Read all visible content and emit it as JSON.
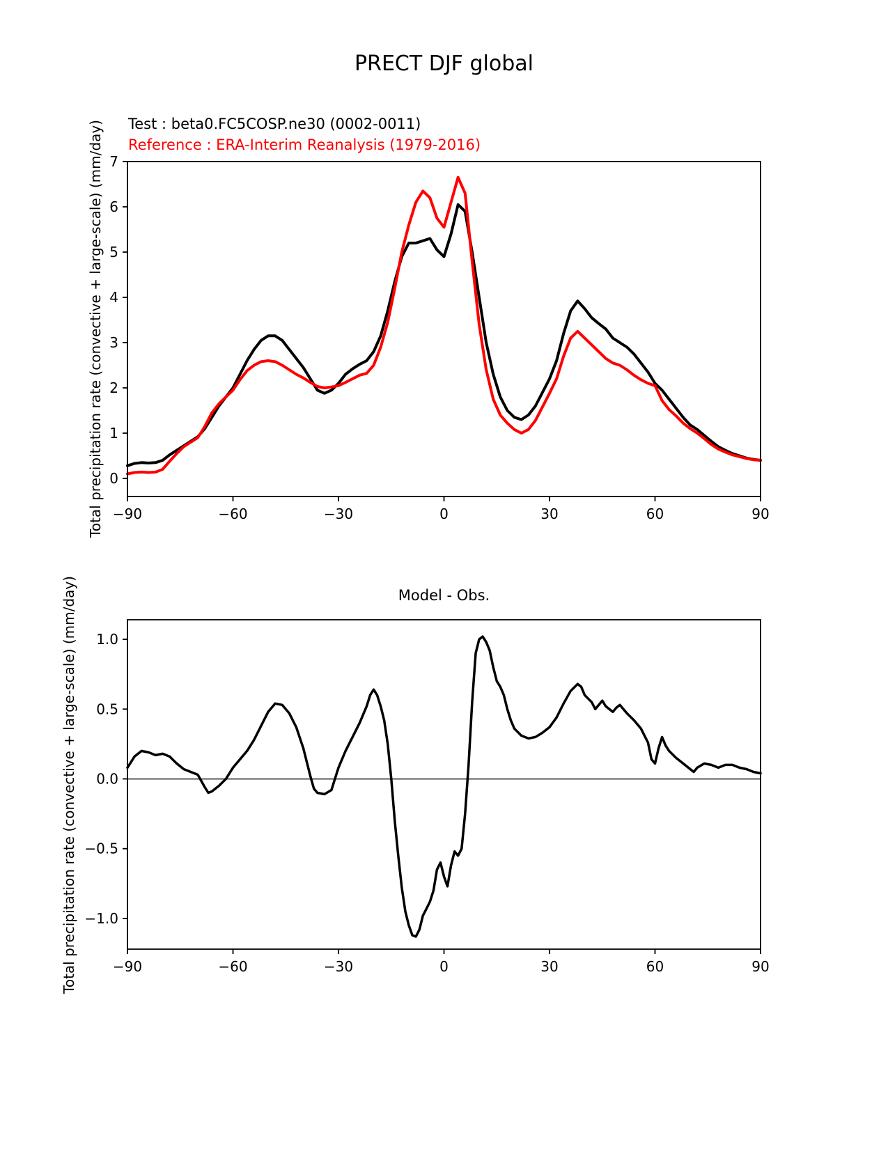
{
  "figure_title": "PRECT DJF global",
  "chart_data": [
    {
      "type": "line",
      "panel": "top",
      "ylabel": "Total precipitation rate (convective + large-scale) (mm/day)",
      "xlim": [
        -90,
        90
      ],
      "ylim": [
        -0.4,
        7.0
      ],
      "grid": false,
      "legend_position": "above-left",
      "xticks": [
        -90,
        -60,
        -30,
        0,
        30,
        60,
        90
      ],
      "xtick_labels": [
        "−90",
        "−60",
        "−30",
        "0",
        "30",
        "60",
        "90"
      ],
      "yticks": [
        0,
        1,
        2,
        3,
        4,
        5,
        6,
        7
      ],
      "ytick_labels": [
        "0",
        "1",
        "2",
        "3",
        "4",
        "5",
        "6",
        "7"
      ],
      "x": [
        -90,
        -88,
        -86,
        -84,
        -82,
        -80,
        -78,
        -76,
        -74,
        -72,
        -70,
        -68,
        -66,
        -64,
        -62,
        -60,
        -58,
        -56,
        -54,
        -52,
        -50,
        -48,
        -46,
        -44,
        -42,
        -40,
        -38,
        -36,
        -34,
        -32,
        -30,
        -28,
        -26,
        -24,
        -22,
        -20,
        -18,
        -16,
        -14,
        -12,
        -10,
        -8,
        -6,
        -4,
        -2,
        0,
        2,
        4,
        6,
        8,
        10,
        12,
        14,
        16,
        18,
        20,
        22,
        24,
        26,
        28,
        30,
        32,
        34,
        36,
        38,
        40,
        42,
        44,
        46,
        48,
        50,
        52,
        54,
        56,
        58,
        60,
        62,
        64,
        66,
        68,
        70,
        72,
        74,
        76,
        78,
        80,
        82,
        84,
        86,
        88,
        90
      ],
      "series": [
        {
          "name": "test",
          "label": "Test : beta0.FC5COSP.ne30 (0002-0011)",
          "color": "#000000",
          "line_width": 4,
          "values": [
            0.28,
            0.33,
            0.35,
            0.34,
            0.35,
            0.4,
            0.52,
            0.62,
            0.72,
            0.82,
            0.92,
            1.1,
            1.35,
            1.6,
            1.8,
            2.0,
            2.3,
            2.6,
            2.85,
            3.05,
            3.15,
            3.15,
            3.05,
            2.85,
            2.65,
            2.45,
            2.2,
            1.95,
            1.88,
            1.95,
            2.1,
            2.3,
            2.42,
            2.52,
            2.6,
            2.8,
            3.15,
            3.7,
            4.35,
            4.9,
            5.2,
            5.2,
            5.25,
            5.3,
            5.05,
            4.9,
            5.4,
            6.05,
            5.9,
            5.0,
            4.0,
            3.0,
            2.3,
            1.8,
            1.5,
            1.35,
            1.3,
            1.4,
            1.6,
            1.9,
            2.2,
            2.6,
            3.2,
            3.7,
            3.92,
            3.75,
            3.55,
            3.42,
            3.3,
            3.1,
            3.0,
            2.9,
            2.75,
            2.55,
            2.35,
            2.1,
            1.95,
            1.75,
            1.55,
            1.35,
            1.18,
            1.08,
            0.95,
            0.82,
            0.7,
            0.62,
            0.55,
            0.5,
            0.45,
            0.42,
            0.4
          ]
        },
        {
          "name": "reference",
          "label": "Reference : ERA-Interim Reanalysis (1979-2016)",
          "color": "#ff0000",
          "line_width": 4,
          "values": [
            0.1,
            0.13,
            0.14,
            0.13,
            0.14,
            0.2,
            0.38,
            0.55,
            0.7,
            0.8,
            0.9,
            1.15,
            1.45,
            1.65,
            1.8,
            1.95,
            2.18,
            2.38,
            2.5,
            2.58,
            2.6,
            2.58,
            2.5,
            2.4,
            2.3,
            2.22,
            2.12,
            2.03,
            2.0,
            2.02,
            2.05,
            2.12,
            2.2,
            2.28,
            2.32,
            2.5,
            2.9,
            3.45,
            4.2,
            5.0,
            5.6,
            6.1,
            6.35,
            6.2,
            5.75,
            5.55,
            6.1,
            6.65,
            6.3,
            4.8,
            3.4,
            2.4,
            1.75,
            1.4,
            1.22,
            1.08,
            1.0,
            1.08,
            1.28,
            1.58,
            1.88,
            2.2,
            2.7,
            3.1,
            3.25,
            3.1,
            2.95,
            2.8,
            2.65,
            2.55,
            2.5,
            2.4,
            2.28,
            2.18,
            2.1,
            2.05,
            1.72,
            1.52,
            1.38,
            1.22,
            1.1,
            1.0,
            0.88,
            0.75,
            0.65,
            0.58,
            0.52,
            0.48,
            0.44,
            0.41,
            0.4
          ]
        }
      ]
    },
    {
      "type": "line",
      "panel": "bottom",
      "title": "Model - Obs.",
      "ylabel": "Total precipitation rate (convective + large-scale) (mm/day)",
      "xlim": [
        -90,
        90
      ],
      "ylim": [
        -1.22,
        1.14
      ],
      "grid": false,
      "zero_line": {
        "y": 0,
        "color": "#808080"
      },
      "xticks": [
        -90,
        -60,
        -30,
        0,
        30,
        60,
        90
      ],
      "xtick_labels": [
        "−90",
        "−60",
        "−30",
        "0",
        "30",
        "60",
        "90"
      ],
      "yticks": [
        -1.0,
        -0.5,
        0.0,
        0.5,
        1.0
      ],
      "ytick_labels": [
        "−1.0",
        "−0.5",
        "0.0",
        "0.5",
        "1.0"
      ],
      "x": [
        -90,
        -88,
        -86,
        -84,
        -82,
        -80,
        -78,
        -76,
        -74,
        -72,
        -70,
        -68,
        -67,
        -66,
        -64,
        -62,
        -60,
        -58,
        -56,
        -54,
        -52,
        -50,
        -48,
        -46,
        -44,
        -42,
        -40,
        -38,
        -37,
        -36,
        -34,
        -32,
        -31,
        -30,
        -28,
        -26,
        -24,
        -22,
        -21,
        -20,
        -19,
        -18,
        -17,
        -16,
        -15,
        -14,
        -13,
        -12,
        -11,
        -10,
        -9,
        -8,
        -7,
        -6,
        -5,
        -4,
        -3,
        -2,
        -1,
        0,
        1,
        2,
        3,
        4,
        5,
        6,
        7,
        8,
        9,
        10,
        11,
        12,
        13,
        14,
        15,
        16,
        17,
        18,
        19,
        20,
        22,
        24,
        26,
        28,
        30,
        32,
        34,
        36,
        38,
        39,
        40,
        42,
        43,
        44,
        45,
        46,
        48,
        49,
        50,
        51,
        52,
        54,
        56,
        58,
        59,
        60,
        61,
        62,
        63,
        64,
        66,
        68,
        70,
        71,
        72,
        74,
        76,
        78,
        80,
        82,
        84,
        86,
        88,
        90
      ],
      "series": [
        {
          "name": "model-minus-obs",
          "label": "Model - Obs.",
          "color": "#000000",
          "line_width": 3.5,
          "values": [
            0.08,
            0.16,
            0.2,
            0.19,
            0.17,
            0.18,
            0.16,
            0.11,
            0.07,
            0.05,
            0.03,
            -0.06,
            -0.1,
            -0.09,
            -0.05,
            0.0,
            0.08,
            0.14,
            0.2,
            0.28,
            0.38,
            0.48,
            0.54,
            0.53,
            0.47,
            0.37,
            0.22,
            0.02,
            -0.07,
            -0.1,
            -0.11,
            -0.08,
            0.0,
            0.08,
            0.2,
            0.3,
            0.4,
            0.52,
            0.6,
            0.64,
            0.6,
            0.52,
            0.42,
            0.25,
            0.0,
            -0.3,
            -0.55,
            -0.78,
            -0.95,
            -1.05,
            -1.12,
            -1.13,
            -1.08,
            -0.98,
            -0.93,
            -0.88,
            -0.8,
            -0.65,
            -0.6,
            -0.7,
            -0.77,
            -0.62,
            -0.52,
            -0.55,
            -0.5,
            -0.25,
            0.1,
            0.55,
            0.9,
            1.0,
            1.02,
            0.98,
            0.92,
            0.8,
            0.7,
            0.66,
            0.6,
            0.5,
            0.42,
            0.36,
            0.31,
            0.29,
            0.3,
            0.33,
            0.37,
            0.44,
            0.54,
            0.63,
            0.68,
            0.66,
            0.6,
            0.55,
            0.5,
            0.53,
            0.56,
            0.52,
            0.48,
            0.51,
            0.53,
            0.5,
            0.47,
            0.42,
            0.36,
            0.26,
            0.14,
            0.11,
            0.22,
            0.3,
            0.24,
            0.2,
            0.15,
            0.11,
            0.07,
            0.05,
            0.08,
            0.11,
            0.1,
            0.08,
            0.1,
            0.1,
            0.08,
            0.07,
            0.05,
            0.04
          ]
        }
      ]
    }
  ]
}
